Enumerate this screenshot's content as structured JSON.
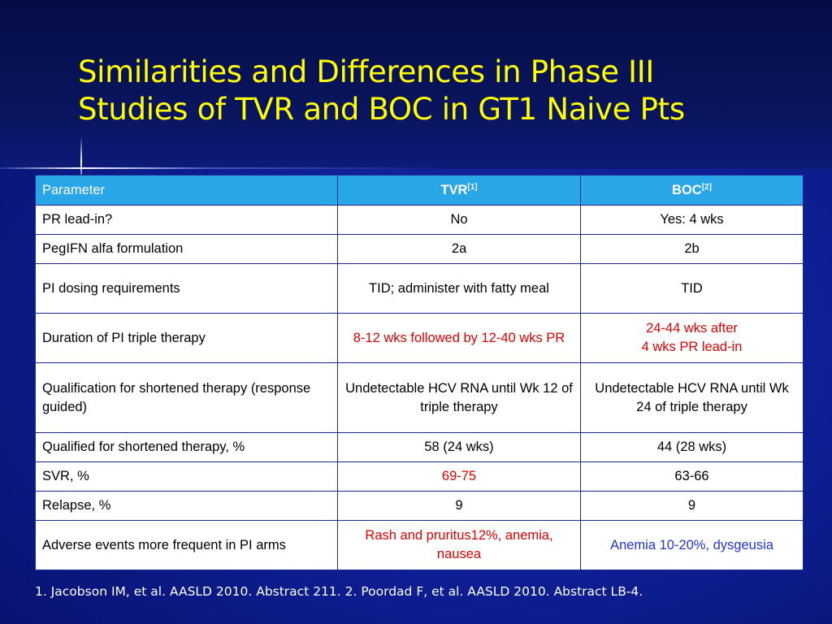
{
  "title": {
    "line1": "Similarities and Differences in Phase III",
    "line2": "Studies of TVR and BOC in GT1 Naive Pts"
  },
  "table": {
    "headers": {
      "parameter": "Parameter",
      "tvr": "TVR",
      "tvr_ref": "[1]",
      "boc": "BOC",
      "boc_ref": "[2]"
    },
    "rows": [
      {
        "parameter": "PR lead-in?",
        "tvr": "No",
        "boc": "Yes: 4 wks"
      },
      {
        "parameter": "PegIFN alfa formulation",
        "tvr": "2a",
        "boc": "2b"
      },
      {
        "parameter": "PI dosing requirements",
        "tvr": "TID; administer with fatty meal",
        "boc": "TID"
      },
      {
        "parameter": "Duration of PI triple therapy",
        "tvr": "8-12 wks followed by 12-40 wks PR",
        "boc_line1": "24-44 wks after",
        "boc_line2": "4 wks PR lead-in"
      },
      {
        "parameter": "Qualification for shortened therapy (response guided)",
        "tvr": "Undetectable HCV RNA until Wk 12 of triple therapy",
        "boc": "Undetectable HCV RNA until Wk 24 of triple therapy"
      },
      {
        "parameter": "Qualified for shortened therapy, %",
        "tvr": "58 (24 wks)",
        "boc": "44 (28 wks)"
      },
      {
        "parameter": "SVR, %",
        "tvr": "69-75",
        "boc": "63-66"
      },
      {
        "parameter": "Relapse, %",
        "tvr": "9",
        "boc": "9"
      },
      {
        "parameter": "Adverse events more frequent in PI arms",
        "tvr": "Rash and pruritus12%, anemia, nausea",
        "boc": "Anemia 10-20%, dysgeusia"
      }
    ]
  },
  "footnote": "1. Jacobson IM, et al. AASLD 2010. Abstract 211. 2. Poordad F, et al. AASLD 2010. Abstract LB-4.",
  "colors": {
    "title": "#ffff00",
    "header_bg": "#29a6e8",
    "highlight_red": "#e00000",
    "highlight_blue": "#2233dd",
    "background": "#0f1f96"
  }
}
